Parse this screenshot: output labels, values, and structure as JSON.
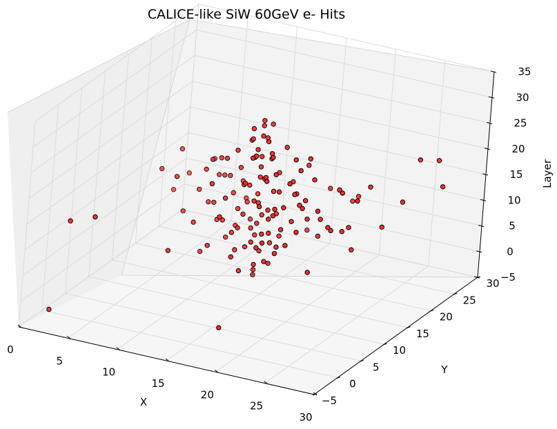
{
  "chart_data": {
    "type": "scatter",
    "dimensions": 3,
    "title": "CALICE-like SiW 60GeV e- Hits",
    "xlabel": "X",
    "ylabel": "Y",
    "zlabel": "Layer",
    "xlim": [
      0,
      30
    ],
    "ylim": [
      -5,
      30
    ],
    "zlim": [
      -5,
      35
    ],
    "x_ticks": [
      "0",
      "5",
      "10",
      "15",
      "20",
      "25",
      "30"
    ],
    "y_ticks": [
      "−5",
      "0",
      "5",
      "10",
      "15",
      "20",
      "25",
      "30"
    ],
    "z_ticks": [
      "−5",
      "0",
      "5",
      "10",
      "15",
      "20",
      "25",
      "30",
      "35"
    ],
    "grid": true,
    "marker_color": "#ff2a2a",
    "marker_edge": "#000000",
    "series": [
      {
        "points": [
          [
            15,
            13,
            0
          ],
          [
            15,
            13,
            1
          ],
          [
            15,
            13,
            2
          ],
          [
            16,
            13,
            3
          ],
          [
            15,
            14,
            4
          ],
          [
            14,
            13,
            5
          ],
          [
            16,
            14,
            6
          ],
          [
            15,
            12,
            7
          ],
          [
            14,
            14,
            8
          ],
          [
            16,
            12,
            9
          ],
          [
            15,
            13,
            10
          ],
          [
            15,
            14,
            11
          ],
          [
            14,
            12,
            12
          ],
          [
            16,
            13,
            13
          ],
          [
            15,
            13,
            14
          ],
          [
            15,
            12,
            15
          ],
          [
            16,
            14,
            16
          ],
          [
            14,
            13,
            17
          ],
          [
            15,
            14,
            18
          ],
          [
            15,
            13,
            19
          ],
          [
            16,
            12,
            20
          ],
          [
            15,
            13,
            21
          ],
          [
            14,
            14,
            22
          ],
          [
            15,
            13,
            23
          ],
          [
            16,
            13,
            24
          ],
          [
            15,
            12,
            25
          ],
          [
            15,
            14,
            26
          ],
          [
            15,
            13,
            27
          ],
          [
            14,
            13,
            28
          ],
          [
            15,
            13,
            29
          ],
          [
            15,
            13,
            30
          ],
          [
            14,
            12,
            1
          ],
          [
            16,
            14,
            2
          ],
          [
            13,
            13,
            4
          ],
          [
            17,
            13,
            5
          ],
          [
            14,
            15,
            6
          ],
          [
            16,
            11,
            7
          ],
          [
            13,
            12,
            8
          ],
          [
            17,
            14,
            9
          ],
          [
            14,
            11,
            10
          ],
          [
            16,
            15,
            11
          ],
          [
            13,
            13,
            12
          ],
          [
            17,
            12,
            13
          ],
          [
            14,
            15,
            14
          ],
          [
            16,
            11,
            15
          ],
          [
            13,
            14,
            16
          ],
          [
            17,
            13,
            17
          ],
          [
            14,
            12,
            18
          ],
          [
            16,
            15,
            19
          ],
          [
            13,
            13,
            20
          ],
          [
            17,
            12,
            21
          ],
          [
            14,
            14,
            22
          ],
          [
            16,
            13,
            23
          ],
          [
            13,
            12,
            24
          ],
          [
            17,
            14,
            25
          ],
          [
            14,
            13,
            26
          ],
          [
            16,
            12,
            27
          ],
          [
            15,
            15,
            28
          ],
          [
            15,
            11,
            24
          ],
          [
            12,
            13,
            6
          ],
          [
            18,
            13,
            7
          ],
          [
            13,
            16,
            8
          ],
          [
            17,
            10,
            9
          ],
          [
            12,
            12,
            10
          ],
          [
            18,
            14,
            11
          ],
          [
            13,
            15,
            12
          ],
          [
            17,
            11,
            13
          ],
          [
            12,
            14,
            14
          ],
          [
            18,
            12,
            15
          ],
          [
            13,
            10,
            16
          ],
          [
            17,
            16,
            17
          ],
          [
            12,
            13,
            18
          ],
          [
            18,
            13,
            19
          ],
          [
            13,
            16,
            20
          ],
          [
            17,
            10,
            21
          ],
          [
            12,
            12,
            22
          ],
          [
            18,
            14,
            23
          ],
          [
            13,
            15,
            24
          ],
          [
            17,
            11,
            25
          ],
          [
            11,
            13,
            9
          ],
          [
            19,
            13,
            10
          ],
          [
            12,
            17,
            11
          ],
          [
            18,
            9,
            12
          ],
          [
            11,
            12,
            13
          ],
          [
            19,
            14,
            14
          ],
          [
            12,
            16,
            15
          ],
          [
            18,
            10,
            16
          ],
          [
            11,
            14,
            17
          ],
          [
            19,
            12,
            18
          ],
          [
            12,
            9,
            19
          ],
          [
            18,
            17,
            20
          ],
          [
            11,
            13,
            21
          ],
          [
            19,
            13,
            22
          ],
          [
            10,
            13,
            12
          ],
          [
            20,
            13,
            13
          ],
          [
            10,
            15,
            16
          ],
          [
            20,
            11,
            17
          ],
          [
            10,
            12,
            19
          ],
          [
            20,
            14,
            20
          ],
          [
            11,
            11,
            22
          ],
          [
            19,
            15,
            23
          ],
          [
            9,
            13,
            14
          ],
          [
            21,
            13,
            15
          ],
          [
            9,
            16,
            18
          ],
          [
            21,
            10,
            19
          ],
          [
            10,
            10,
            10
          ],
          [
            20,
            16,
            11
          ],
          [
            14,
            10,
            5
          ],
          [
            16,
            16,
            6
          ],
          [
            12,
            15,
            7
          ],
          [
            18,
            11,
            8
          ],
          [
            13,
            9,
            13
          ],
          [
            17,
            17,
            14
          ],
          [
            8,
            12,
            10
          ],
          [
            22,
            14,
            11
          ],
          [
            7,
            15,
            15
          ],
          [
            23,
            11,
            14
          ],
          [
            8,
            10,
            18
          ],
          [
            22,
            16,
            17
          ],
          [
            7,
            13,
            21
          ],
          [
            23,
            13,
            20
          ],
          [
            6,
            14,
            12
          ],
          [
            24,
            12,
            13
          ],
          [
            6,
            11,
            18
          ],
          [
            24,
            15,
            17
          ],
          [
            19,
            20,
            14
          ],
          [
            21,
            22,
            12
          ],
          [
            23,
            20,
            16
          ],
          [
            20,
            23,
            10
          ],
          [
            22,
            18,
            9
          ],
          [
            24,
            21,
            8
          ],
          [
            26,
            24,
            20
          ],
          [
            27,
            26,
            19
          ],
          [
            25,
            23,
            12
          ],
          [
            28,
            25,
            15
          ],
          [
            3,
            -2,
            15
          ],
          [
            5,
            -1,
            16
          ],
          [
            9,
            7,
            6
          ],
          [
            2,
            -3,
            -2
          ],
          [
            16,
            4,
            -4
          ],
          [
            10,
            12,
            3
          ],
          [
            12,
            9,
            7
          ],
          [
            19,
            18,
            6
          ],
          [
            20,
            14,
            2
          ],
          [
            17,
            20,
            5
          ],
          [
            22,
            19,
            4
          ]
        ]
      }
    ]
  }
}
